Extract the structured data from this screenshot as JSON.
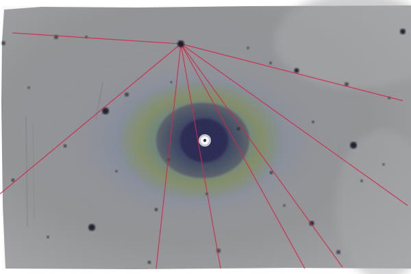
{
  "image": {
    "subject": "false-color-astronomical-galaxy-image",
    "colors": {
      "background_gray": "#8f9093",
      "light_gray": "#a7a8ab",
      "halo_blue_gray": "#7b879b",
      "ring_olive": "#7f8a63",
      "ring_teal": "#5f7f7e",
      "inner_dark": "#555a66",
      "core_navy": "#1d1f4a",
      "core_white": "#ffffff",
      "line_red": "#d1294a",
      "star_dark": "#1b1e2a"
    }
  }
}
